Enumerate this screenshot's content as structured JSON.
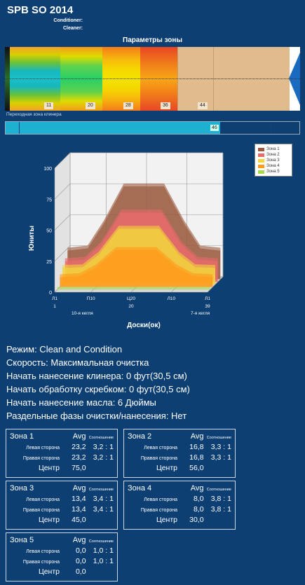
{
  "header": {
    "title": "SPB SO 2014",
    "conditioner_label": "Conditioner:",
    "cleaner_label": "Cleaner:"
  },
  "lane": {
    "section_title": "Параметры зоны",
    "zone_markers": [
      "11",
      "20",
      "28",
      "36",
      "44"
    ],
    "transition_label": "Переходная зона клинера",
    "transition_value": "46"
  },
  "chart_data": {
    "type": "area",
    "ylabel": "Юниты",
    "xlabel": "Доски(ок)",
    "ylim": [
      0,
      100
    ],
    "y_ticks": [
      "0",
      "25",
      "50",
      "75",
      "100"
    ],
    "x_tick_top": [
      "Л1",
      "П10",
      "Ц20",
      "Л10",
      "Л1"
    ],
    "x_tick_bottom": [
      "1",
      "20",
      "39"
    ],
    "x_notes": [
      "10-я кегля",
      "7-я кегля"
    ],
    "x": [
      1,
      6,
      10,
      15,
      20,
      25,
      30,
      34,
      39
    ],
    "series": [
      {
        "name": "Зона 1",
        "color": "#9b5a3f",
        "values": [
          23.2,
          25,
          45,
          75,
          75,
          75,
          45,
          25,
          23.2
        ]
      },
      {
        "name": "Зона 2",
        "color": "#e86b6b",
        "values": [
          16.8,
          18,
          30,
          56,
          56,
          56,
          30,
          18,
          16.8
        ]
      },
      {
        "name": "Зона 3",
        "color": "#f2d53c",
        "values": [
          13.4,
          14,
          24,
          45,
          45,
          45,
          24,
          14,
          13.4
        ]
      },
      {
        "name": "Зона 4",
        "color": "#ff9a1a",
        "values": [
          8,
          9,
          16,
          30,
          30,
          30,
          16,
          9,
          8
        ]
      },
      {
        "name": "Зона 5",
        "color": "#a7d84a",
        "values": [
          0,
          0,
          0,
          0,
          0,
          0,
          0,
          0,
          0
        ]
      }
    ],
    "legend_position": "top-right"
  },
  "params": {
    "mode": "Режим: Clean and Condition",
    "speed": "Скорость: Максимальная очистка",
    "cleaner_start": "Начать нанесение клинера: 0 фут(30,5 см)",
    "scraper_start": "Начать обработку скребком: 0 фут(30,5 см)",
    "oil_start": "Начать нанесение масла: 6 Дюймы",
    "separate_phases": "Раздельные фазы очистки/нанесения: Нет"
  },
  "zones": {
    "avg_label": "Avg",
    "ratio_label": "Соотношение",
    "left_label": "Левая сторона",
    "right_label": "Правая сторона",
    "center_label": "Центр",
    "items": [
      {
        "name": "Зона 1",
        "left_avg": "23,2",
        "left_ratio": "3,2 : 1",
        "right_avg": "23,2",
        "right_ratio": "3,2 : 1",
        "center": "75,0"
      },
      {
        "name": "Зона 2",
        "left_avg": "16,8",
        "left_ratio": "3,3 : 1",
        "right_avg": "16,8",
        "right_ratio": "3,3 : 1",
        "center": "56,0"
      },
      {
        "name": "Зона 3",
        "left_avg": "13,4",
        "left_ratio": "3,4 : 1",
        "right_avg": "13,4",
        "right_ratio": "3,4 : 1",
        "center": "45,0"
      },
      {
        "name": "Зона 4",
        "left_avg": "8,0",
        "left_ratio": "3,8 : 1",
        "right_avg": "8,0",
        "right_ratio": "3,8 : 1",
        "center": "30,0"
      },
      {
        "name": "Зона 5",
        "left_avg": "0,0",
        "left_ratio": "1,0 : 1",
        "right_avg": "0,0",
        "right_ratio": "1,0 : 1",
        "center": "0,0"
      }
    ]
  }
}
